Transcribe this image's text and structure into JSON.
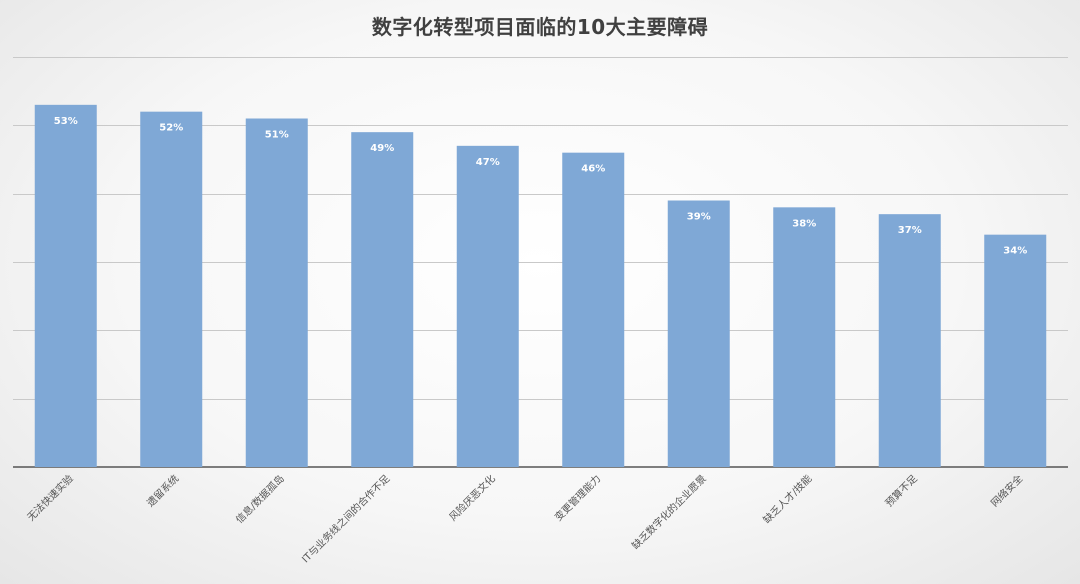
{
  "chart_data": {
    "type": "bar",
    "title": "数字化转型项目面临的10大主要障碍",
    "categories": [
      "无法快速实验",
      "遗留系统",
      "信息/数据孤岛",
      "IT与业务线之间的合作不足",
      "风险厌恶文化",
      "变更管理能力",
      "缺乏数字化的企业愿景",
      "缺乏人才/技能",
      "预算不足",
      "网络安全"
    ],
    "values": [
      53,
      52,
      51,
      49,
      47,
      46,
      39,
      38,
      37,
      34
    ],
    "data_labels": [
      "53%",
      "52%",
      "51%",
      "49%",
      "47%",
      "46%",
      "39%",
      "38%",
      "37%",
      "34%"
    ],
    "unit": "%",
    "ylim": [
      0,
      60
    ],
    "y_gridlines": [
      10,
      20,
      30,
      40,
      50,
      60
    ],
    "grid": true,
    "legend": "none",
    "xlabel": "",
    "ylabel": "",
    "colors": {
      "bar": "#7fa8d6",
      "data_label": "#ffffff",
      "title": "#404040",
      "tick_label": "#555555",
      "gridline": "#c9c9c9",
      "baseline": "#555555"
    }
  }
}
